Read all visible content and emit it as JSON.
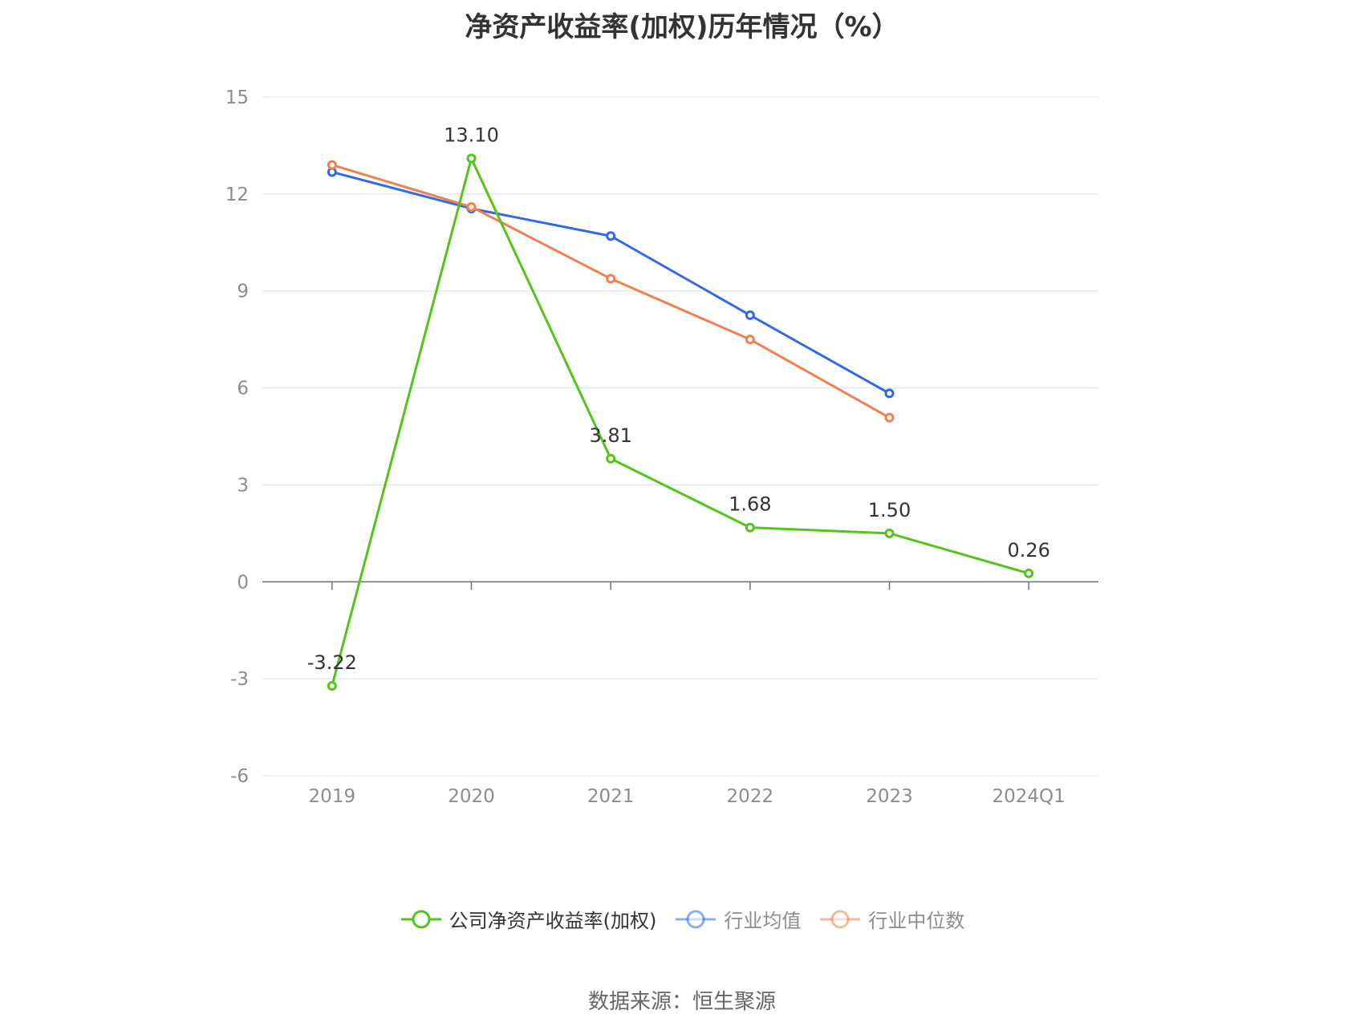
{
  "title": "净资产收益率(加权)历年情况（%）",
  "source_text": "数据来源：恒生聚源",
  "colors": {
    "company": "#52c41a",
    "industry_avg": "#3369e7",
    "industry_median": "#f0804f",
    "grid": "#e0e6f1",
    "axis": "#6e7079",
    "tick_text": "#8c8c8c",
    "label_text": "#333333"
  },
  "chart_data": {
    "type": "line",
    "title": "净资产收益率(加权)历年情况（%）",
    "xlabel": "",
    "ylabel": "",
    "categories": [
      "2019",
      "2020",
      "2021",
      "2022",
      "2023",
      "2024Q1"
    ],
    "ylim": [
      -6,
      15
    ],
    "yticks": [
      15,
      12,
      9,
      6,
      3,
      0,
      -3,
      -6
    ],
    "grid": true,
    "legend_position": "bottom",
    "series": [
      {
        "name": "公司净资产收益率(加权)",
        "color": "#52c41a",
        "values": [
          -3.22,
          13.1,
          3.81,
          1.68,
          1.5,
          0.26
        ],
        "labels": [
          "-3.22",
          "13.10",
          "3.81",
          "1.68",
          "1.50",
          "0.26"
        ]
      },
      {
        "name": "行业均值",
        "color": "#3369e7",
        "values": [
          12.68,
          11.55,
          10.7,
          8.25,
          5.83,
          null
        ]
      },
      {
        "name": "行业中位数",
        "color": "#f0804f",
        "values": [
          12.9,
          11.6,
          9.38,
          7.5,
          5.08,
          null
        ]
      }
    ]
  }
}
